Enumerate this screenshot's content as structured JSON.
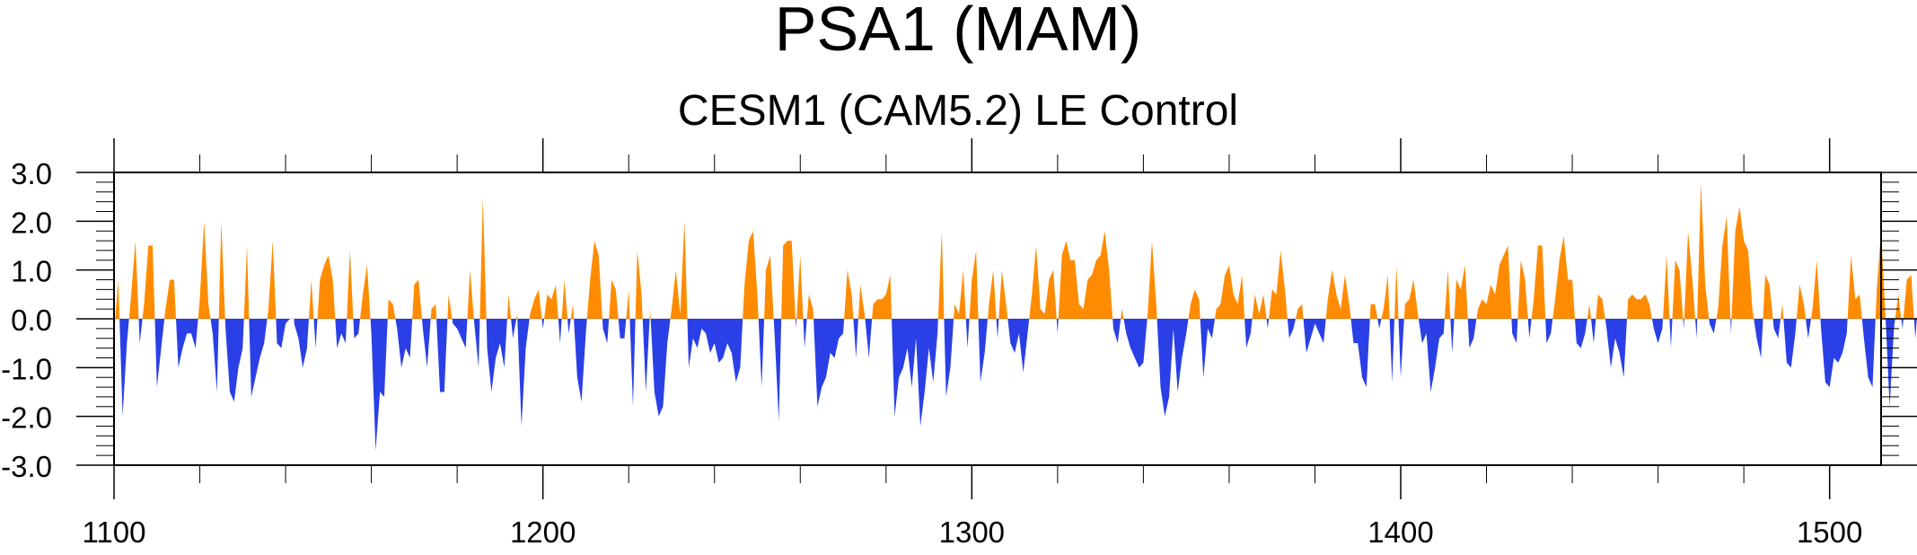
{
  "chart_data": {
    "type": "area",
    "title": "PSA1 (MAM)",
    "subtitle": "CESM1 (CAM5.2) LE Control",
    "xlabel": "",
    "ylabel": "",
    "xlim": [
      1100,
      1512
    ],
    "ylim": [
      -3.0,
      3.0
    ],
    "x_ticks": [
      1100,
      1200,
      1300,
      1400,
      1500
    ],
    "x_tick_labels": [
      "1100",
      "1200",
      "1300",
      "1400",
      "1500"
    ],
    "y_ticks": [
      3.0,
      2.0,
      1.0,
      0.0,
      -1.0,
      -2.0,
      -3.0
    ],
    "y_tick_labels": [
      "3.0",
      "2.0",
      "1.0",
      "0.0",
      "-1.0",
      "-2.0",
      "-3.0"
    ],
    "grid": false,
    "x_start": 1100,
    "x_step": 1,
    "values": [
      -0.3,
      0.8,
      -2.0,
      -0.5,
      0.5,
      1.6,
      -0.5,
      0.3,
      1.5,
      1.5,
      -1.4,
      -0.6,
      0.2,
      0.8,
      0.8,
      -1.0,
      -0.6,
      -0.3,
      -0.3,
      -0.6,
      0.4,
      2.0,
      0.3,
      -0.3,
      -1.5,
      2.0,
      -0.2,
      -1.5,
      -1.7,
      -1.0,
      -0.6,
      1.5,
      -1.6,
      -1.2,
      -0.8,
      -0.5,
      0.2,
      1.6,
      -0.5,
      -0.6,
      -0.1,
      0.0,
      -0.1,
      -0.4,
      -1.0,
      -0.6,
      0.8,
      -0.6,
      0.8,
      1.1,
      1.3,
      0.8,
      -0.6,
      -0.3,
      -0.5,
      1.4,
      -0.4,
      -0.3,
      0.5,
      1.1,
      -0.3,
      -2.7,
      -1.5,
      -1.6,
      0.4,
      0.3,
      -0.2,
      -1.0,
      -0.6,
      -0.8,
      0.7,
      0.8,
      -0.2,
      -1.0,
      0.2,
      0.3,
      -1.5,
      -1.5,
      0.5,
      -0.1,
      -0.2,
      -0.4,
      -0.6,
      1.0,
      -0.1,
      -1.0,
      2.5,
      -0.6,
      -1.5,
      -0.8,
      -0.5,
      -1.0,
      0.5,
      -0.4,
      0.1,
      -2.2,
      -0.6,
      0.1,
      0.4,
      0.6,
      -0.2,
      0.5,
      0.4,
      0.7,
      -0.5,
      0.8,
      -0.3,
      0.3,
      -1.2,
      -1.7,
      -0.3,
      0.8,
      1.6,
      1.3,
      -0.2,
      -0.5,
      0.8,
      0.6,
      -0.4,
      -0.4,
      0.6,
      -1.8,
      1.4,
      0.5,
      -1.5,
      0.2,
      -1.5,
      -2.0,
      -1.8,
      -0.5,
      0.2,
      1.0,
      0.1,
      2.0,
      -1.0,
      -0.4,
      -0.6,
      -0.2,
      -0.3,
      -0.7,
      -0.5,
      -0.9,
      -0.8,
      -0.5,
      -0.7,
      -1.3,
      -1.0,
      0.7,
      1.6,
      1.8,
      0.5,
      -1.4,
      1.0,
      1.3,
      -0.3,
      -2.1,
      1.5,
      1.6,
      1.6,
      -0.2,
      1.3,
      -0.6,
      0.5,
      0.2,
      -1.8,
      -1.4,
      -1.2,
      -0.7,
      -0.8,
      -0.4,
      -0.3,
      1.0,
      0.5,
      -0.8,
      0.7,
      0.1,
      -0.8,
      0.3,
      0.4,
      0.4,
      0.5,
      0.9,
      -2.0,
      -1.2,
      -1.0,
      -0.6,
      -1.4,
      -0.4,
      -2.2,
      -1.5,
      -0.6,
      -1.3,
      -0.3,
      1.8,
      -1.6,
      -1.0,
      0.3,
      0.1,
      1.0,
      -0.6,
      0.8,
      1.4,
      -1.3,
      -0.7,
      0.3,
      1.0,
      -0.4,
      1.0,
      0.3,
      -0.5,
      -0.7,
      -0.3,
      -1.1,
      -0.3,
      0.5,
      1.5,
      0.2,
      0.1,
      0.8,
      1.0,
      -0.3,
      1.3,
      1.6,
      1.2,
      1.2,
      0.3,
      0.2,
      0.8,
      0.9,
      1.2,
      1.3,
      1.8,
      1.0,
      -0.2,
      -0.5,
      0.2,
      -0.3,
      -0.6,
      -0.8,
      -1.0,
      -0.9,
      0.1,
      1.6,
      0.3,
      -1.4,
      -2.0,
      -1.6,
      -0.2,
      -1.5,
      -0.8,
      -0.3,
      0.3,
      0.6,
      0.4,
      -1.2,
      -0.2,
      -0.4,
      0.2,
      0.3,
      0.9,
      1.1,
      0.5,
      0.3,
      0.9,
      -0.6,
      -0.3,
      0.5,
      0.1,
      0.5,
      -0.2,
      0.6,
      0.5,
      1.4,
      0.6,
      -0.4,
      -0.2,
      0.2,
      0.3,
      -0.7,
      -0.4,
      -0.1,
      -0.3,
      -0.5,
      0.4,
      1.0,
      0.5,
      0.2,
      0.9,
      0.3,
      -0.5,
      -0.5,
      -1.2,
      -1.4,
      0.3,
      0.3,
      -0.2,
      0.2,
      0.9,
      -1.3,
      1.1,
      -1.2,
      0.3,
      0.4,
      0.8,
      0.1,
      -0.5,
      -0.3,
      -1.5,
      -1.0,
      -0.4,
      -0.3,
      1.0,
      -0.7,
      0.8,
      0.6,
      1.1,
      -0.6,
      -0.4,
      0.2,
      0.4,
      0.3,
      0.7,
      0.5,
      1.1,
      1.3,
      1.5,
      -0.3,
      -0.5,
      1.2,
      0.8,
      -0.4,
      0.4,
      1.5,
      1.5,
      -0.5,
      -0.3,
      0.4,
      1.2,
      1.7,
      0.8,
      0.8,
      -0.5,
      -0.6,
      -0.3,
      0.3,
      -0.5,
      0.5,
      0.4,
      -0.2,
      -1.0,
      -0.4,
      -0.7,
      -1.2,
      0.4,
      0.5,
      0.4,
      0.4,
      0.5,
      0.3,
      -0.2,
      -0.5,
      -0.2,
      1.3,
      -0.6,
      1.2,
      1.0,
      -0.2,
      1.8,
      0.8,
      -0.4,
      2.8,
      0.7,
      -0.1,
      -0.3,
      0.2,
      1.5,
      2.1,
      -0.3,
      1.8,
      2.3,
      1.6,
      1.4,
      0.2,
      -0.4,
      -0.8,
      0.9,
      0.7,
      -0.2,
      -0.4,
      0.3,
      -0.9,
      -1.0,
      -0.3,
      0.7,
      0.3,
      -0.4,
      0.2,
      1.2,
      -0.2,
      -1.3,
      -1.4,
      -0.8,
      -0.9,
      -0.7,
      -0.3,
      1.3,
      0.4,
      0.5,
      -0.4,
      -1.2,
      -1.4,
      0.6,
      1.8,
      0.1,
      -1.8,
      -0.2,
      0.5,
      -0.2,
      0.8,
      0.9,
      -0.4,
      0.8
    ],
    "colors": {
      "positive": "#ff8c00",
      "negative": "#2a40e6",
      "axis": "#000000"
    }
  }
}
